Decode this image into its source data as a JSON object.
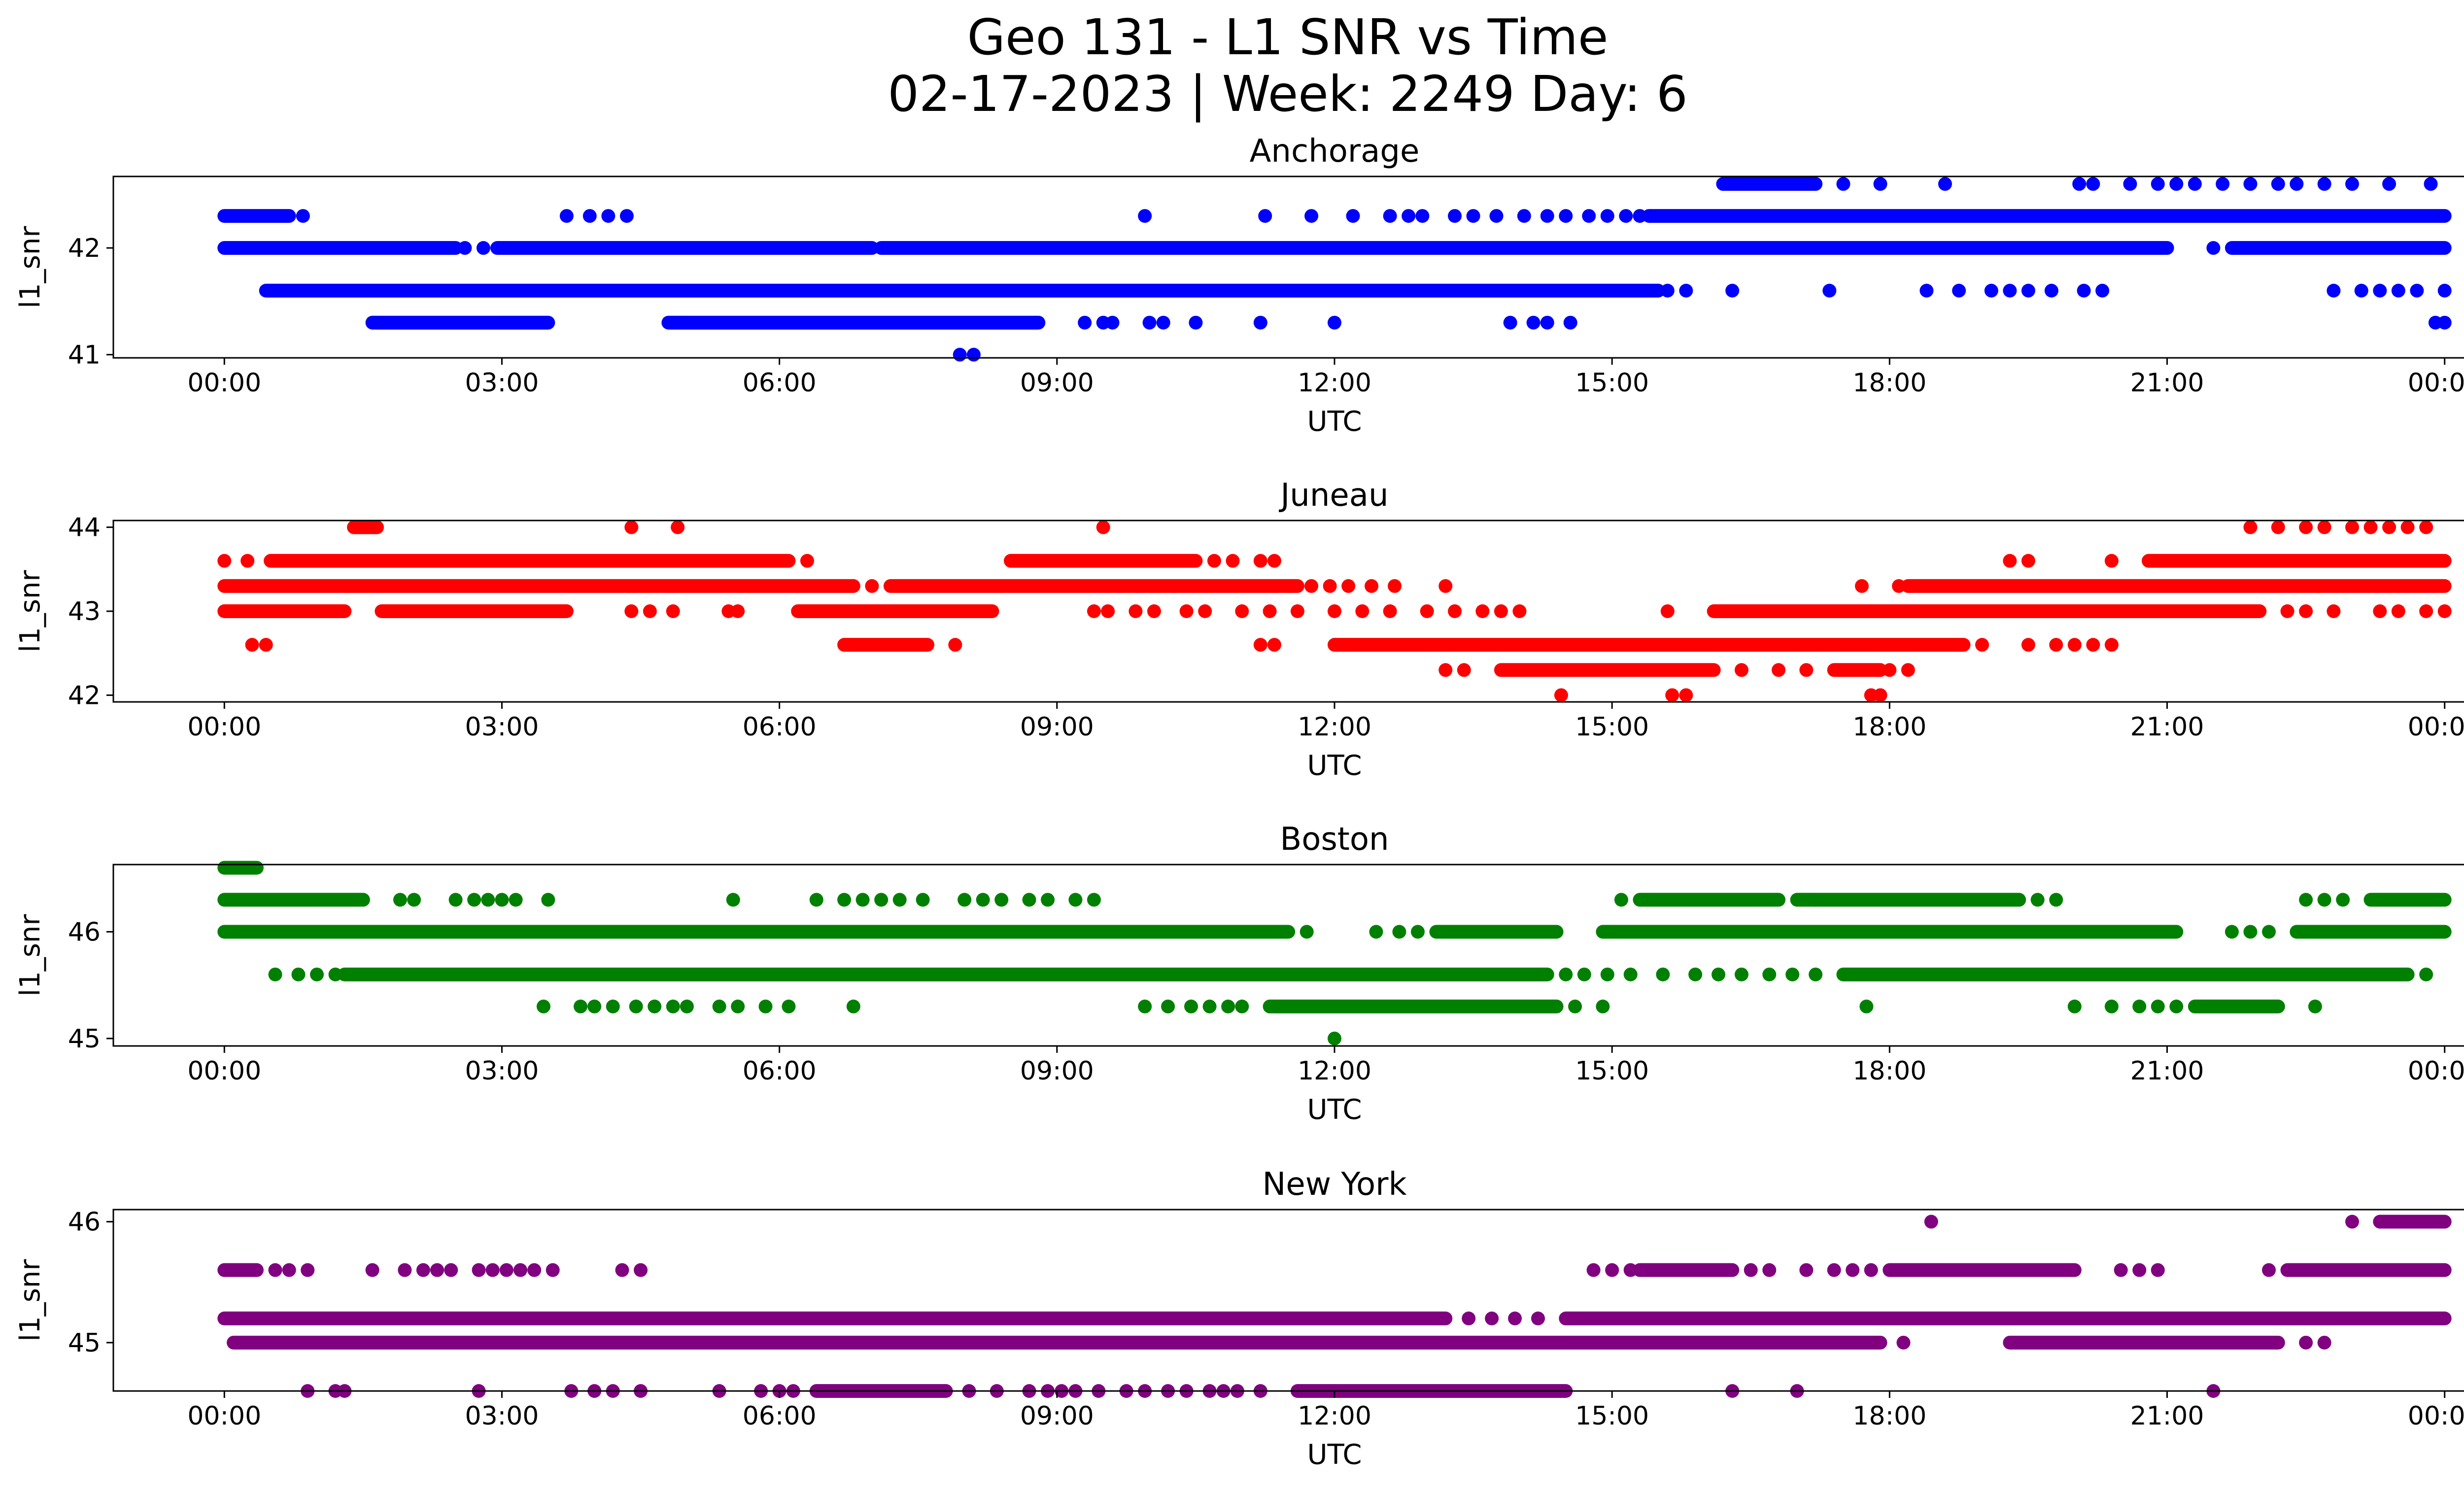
{
  "figure": {
    "title_line1": "Geo 131 - L1 SNR vs Time",
    "title_line2": "02-17-2023 | Week: 2249 Day: 6"
  },
  "chart_data": [
    {
      "type": "scatter",
      "title": "Anchorage",
      "xlabel": "UTC",
      "ylabel": "l1_snr",
      "color": "#0000ff",
      "x_ticks": [
        "00:00",
        "03:00",
        "06:00",
        "09:00",
        "12:00",
        "15:00",
        "18:00",
        "21:00",
        "00:00"
      ],
      "y_ticks": [
        41,
        42
      ],
      "ylim": [
        40.97,
        42.67
      ],
      "xlim_hours": [
        -1.2,
        25.2
      ],
      "series": [
        {
          "y": 42.6,
          "segments": [
            [
              16.2,
              17.2
            ]
          ],
          "points": [
            17.5,
            17.9,
            18.6,
            20.05,
            20.2,
            20.6,
            20.9,
            21.1,
            21.3,
            21.6,
            21.9,
            22.2,
            22.4,
            22.7,
            23.0,
            23.4,
            23.85
          ]
        },
        {
          "y": 42.3,
          "segments": [
            [
              0.0,
              0.7
            ],
            [
              15.4,
              24.0
            ]
          ],
          "points": [
            0.85,
            3.7,
            3.95,
            4.15,
            4.35,
            9.95,
            11.25,
            11.75,
            12.2,
            12.6,
            12.8,
            12.95,
            13.3,
            13.5,
            13.75,
            14.05,
            14.3,
            14.5,
            14.75,
            14.95,
            15.15,
            15.3
          ]
        },
        {
          "y": 42.0,
          "segments": [
            [
              0.0,
              2.5
            ],
            [
              2.95,
              7.0
            ],
            [
              7.1,
              21.0
            ],
            [
              21.7,
              24.0
            ]
          ],
          "points": [
            2.6,
            2.8,
            21.5
          ]
        },
        {
          "y": 41.6,
          "segments": [
            [
              0.45,
              15.5
            ]
          ],
          "points": [
            15.6,
            15.8,
            16.3,
            17.35,
            18.4,
            18.75,
            19.1,
            19.3,
            19.5,
            19.75,
            20.1,
            20.3,
            22.8,
            23.1,
            23.3,
            23.5,
            23.7,
            24.0
          ]
        },
        {
          "y": 41.3,
          "segments": [
            [
              1.6,
              3.5
            ],
            [
              4.8,
              8.8
            ]
          ],
          "points": [
            9.3,
            9.5,
            9.6,
            10.0,
            10.15,
            10.5,
            11.2,
            12.0,
            13.9,
            14.15,
            14.3,
            14.55,
            23.9,
            24.0
          ]
        },
        {
          "y": 41.0,
          "segments": [],
          "points": [
            7.95,
            8.1
          ]
        }
      ]
    },
    {
      "type": "scatter",
      "title": "Juneau",
      "xlabel": "UTC",
      "ylabel": "l1_snr",
      "color": "#ff0000",
      "x_ticks": [
        "00:00",
        "03:00",
        "06:00",
        "09:00",
        "12:00",
        "15:00",
        "18:00",
        "21:00",
        "00:00"
      ],
      "y_ticks": [
        42,
        43,
        44
      ],
      "ylim": [
        41.92,
        44.08
      ],
      "xlim_hours": [
        -1.2,
        25.2
      ],
      "series": [
        {
          "y": 44.0,
          "segments": [
            [
              1.4,
              1.65
            ]
          ],
          "points": [
            4.4,
            4.9,
            9.5,
            21.9,
            22.2,
            22.5,
            22.7,
            23.0,
            23.2,
            23.4,
            23.6,
            23.8
          ]
        },
        {
          "y": 43.6,
          "segments": [
            [
              0.5,
              6.1
            ],
            [
              8.5,
              10.5
            ],
            [
              20.8,
              24.0
            ]
          ],
          "points": [
            0.0,
            0.25,
            6.3,
            10.7,
            10.9,
            11.2,
            11.35,
            19.3,
            19.5,
            20.4
          ]
        },
        {
          "y": 43.3,
          "segments": [
            [
              0.0,
              6.8
            ],
            [
              7.2,
              11.6
            ],
            [
              18.2,
              24.0
            ]
          ],
          "points": [
            7.0,
            11.75,
            11.95,
            12.15,
            12.4,
            12.65,
            13.2,
            17.7,
            18.1
          ]
        },
        {
          "y": 43.0,
          "segments": [
            [
              0.0,
              1.3
            ],
            [
              1.7,
              3.7
            ],
            [
              6.2,
              8.3
            ],
            [
              16.1,
              22.0
            ]
          ],
          "points": [
            4.4,
            4.6,
            4.85,
            5.45,
            5.55,
            9.4,
            9.55,
            9.85,
            10.05,
            10.4,
            10.6,
            11.0,
            11.3,
            11.6,
            12.0,
            12.3,
            12.6,
            13.0,
            13.3,
            13.6,
            13.8,
            14.0,
            15.6,
            22.3,
            22.5,
            22.8,
            23.3,
            23.5,
            23.8,
            24.0
          ]
        },
        {
          "y": 42.6,
          "segments": [
            [
              6.7,
              7.6
            ],
            [
              12.0,
              18.8
            ]
          ],
          "points": [
            0.3,
            0.45,
            7.9,
            11.2,
            11.35,
            19.0,
            19.5,
            19.8,
            20.0,
            20.2,
            20.4
          ]
        },
        {
          "y": 42.3,
          "segments": [
            [
              13.8,
              16.1
            ],
            [
              17.4,
              17.9
            ]
          ],
          "points": [
            13.2,
            13.4,
            16.4,
            16.8,
            17.1,
            18.0,
            18.2
          ]
        },
        {
          "y": 42.0,
          "segments": [],
          "points": [
            14.45,
            15.65,
            15.8,
            17.8,
            17.9
          ]
        }
      ]
    },
    {
      "type": "scatter",
      "title": "Boston",
      "xlabel": "UTC",
      "ylabel": "l1_snr",
      "color": "#008000",
      "x_ticks": [
        "00:00",
        "03:00",
        "06:00",
        "09:00",
        "12:00",
        "15:00",
        "18:00",
        "21:00",
        "00:00"
      ],
      "y_ticks": [
        45,
        46
      ],
      "ylim": [
        44.93,
        46.63
      ],
      "xlim_hours": [
        -1.2,
        25.2
      ],
      "series": [
        {
          "y": 46.6,
          "segments": [
            [
              0.0,
              0.35
            ]
          ],
          "points": []
        },
        {
          "y": 46.3,
          "segments": [
            [
              0.0,
              1.5
            ],
            [
              15.3,
              16.8
            ],
            [
              17.0,
              19.4
            ],
            [
              23.2,
              24.0
            ]
          ],
          "points": [
            1.9,
            2.05,
            2.5,
            2.7,
            2.85,
            3.0,
            3.15,
            3.5,
            5.5,
            6.4,
            6.7,
            6.9,
            7.1,
            7.3,
            7.55,
            8.0,
            8.2,
            8.4,
            8.7,
            8.9,
            9.2,
            9.4,
            15.1,
            17.2,
            19.6,
            19.8,
            22.5,
            22.7,
            22.9
          ]
        },
        {
          "y": 46.0,
          "segments": [
            [
              0.0,
              11.5
            ],
            [
              13.1,
              14.4
            ],
            [
              14.9,
              21.1
            ],
            [
              22.4,
              24.0
            ]
          ],
          "points": [
            11.7,
            12.45,
            12.7,
            12.9,
            21.7,
            21.9,
            22.1
          ]
        },
        {
          "y": 45.6,
          "segments": [
            [
              1.3,
              14.3
            ],
            [
              17.5,
              23.6
            ]
          ],
          "points": [
            0.55,
            0.8,
            1.0,
            1.2,
            14.5,
            14.7,
            14.95,
            15.2,
            15.55,
            15.9,
            16.15,
            16.4,
            16.7,
            16.95,
            17.2,
            18.1,
            18.5,
            18.7,
            23.8
          ]
        },
        {
          "y": 45.3,
          "segments": [
            [
              11.3,
              14.4
            ],
            [
              21.3,
              22.2
            ]
          ],
          "points": [
            3.45,
            3.85,
            4.0,
            4.2,
            4.45,
            4.65,
            4.85,
            5.0,
            5.35,
            5.55,
            5.85,
            6.1,
            6.8,
            9.95,
            10.2,
            10.45,
            10.65,
            10.85,
            11.0,
            14.6,
            14.9,
            17.75,
            20.0,
            20.4,
            20.7,
            20.9,
            21.1,
            22.6
          ]
        },
        {
          "y": 45.0,
          "segments": [],
          "points": [
            12.0
          ]
        }
      ]
    },
    {
      "type": "scatter",
      "title": "New York",
      "xlabel": "UTC",
      "ylabel": "l1_snr",
      "color": "#800080",
      "x_ticks": [
        "00:00",
        "03:00",
        "06:00",
        "09:00",
        "12:00",
        "15:00",
        "18:00",
        "21:00",
        "00:00"
      ],
      "y_ticks": [
        45,
        46
      ],
      "ylim": [
        44.6,
        46.1
      ],
      "xlim_hours": [
        -1.2,
        25.2
      ],
      "series": [
        {
          "y": 46.0,
          "segments": [
            [
              23.3,
              24.0
            ]
          ],
          "points": [
            18.45,
            23.0
          ]
        },
        {
          "y": 45.6,
          "segments": [
            [
              0.0,
              0.35
            ],
            [
              15.3,
              16.3
            ],
            [
              18.0,
              20.0
            ],
            [
              22.3,
              24.0
            ]
          ],
          "points": [
            0.55,
            0.7,
            0.9,
            1.6,
            1.95,
            2.15,
            2.3,
            2.45,
            2.75,
            2.9,
            3.05,
            3.2,
            3.35,
            3.55,
            4.3,
            4.5,
            14.8,
            15.0,
            15.2,
            16.5,
            16.7,
            17.1,
            17.4,
            17.6,
            17.8,
            20.5,
            20.7,
            20.9,
            22.1
          ]
        },
        {
          "y": 45.2,
          "segments": [
            [
              0.0,
              13.2
            ],
            [
              14.5,
              24.0
            ]
          ],
          "points": [
            13.45,
            13.7,
            13.95,
            14.2
          ]
        },
        {
          "y": 45.0,
          "segments": [
            [
              0.1,
              17.9
            ],
            [
              19.3,
              22.2
            ]
          ],
          "points": [
            18.15,
            22.5,
            22.7
          ]
        },
        {
          "y": 44.6,
          "segments": [
            [
              6.4,
              7.8
            ],
            [
              11.6,
              14.5
            ]
          ],
          "points": [
            0.9,
            1.2,
            1.3,
            2.75,
            3.75,
            4.0,
            4.2,
            4.5,
            5.35,
            5.8,
            6.0,
            6.15,
            8.05,
            8.35,
            8.7,
            8.9,
            9.05,
            9.2,
            9.45,
            9.75,
            9.95,
            10.2,
            10.4,
            10.65,
            10.8,
            10.95,
            11.2,
            16.3,
            17.0,
            21.5
          ]
        }
      ]
    }
  ]
}
